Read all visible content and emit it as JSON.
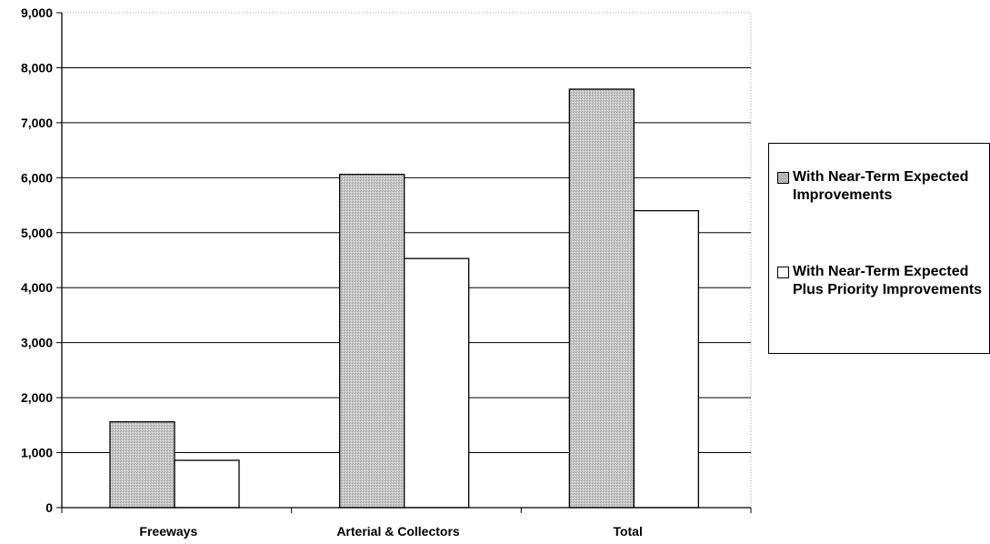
{
  "chart_data": {
    "type": "bar",
    "categories": [
      "Freeways",
      "Arterial & Collectors",
      "Total"
    ],
    "series": [
      {
        "name": "With Near-Term Expected Improvements",
        "values": [
          1560,
          6060,
          7610
        ],
        "color": "#c4c4c4"
      },
      {
        "name": "With Near-Term Expected Plus Priority Improvements",
        "values": [
          860,
          4530,
          5400
        ],
        "color": "#ffffff"
      }
    ],
    "ylim": [
      0,
      9000
    ],
    "yticks": [
      "0",
      "1,000",
      "2,000",
      "3,000",
      "4,000",
      "5,000",
      "6,000",
      "7,000",
      "8,000",
      "9,000"
    ],
    "grid": true,
    "legend_position": "right",
    "title": "",
    "xlabel": "",
    "ylabel": ""
  }
}
